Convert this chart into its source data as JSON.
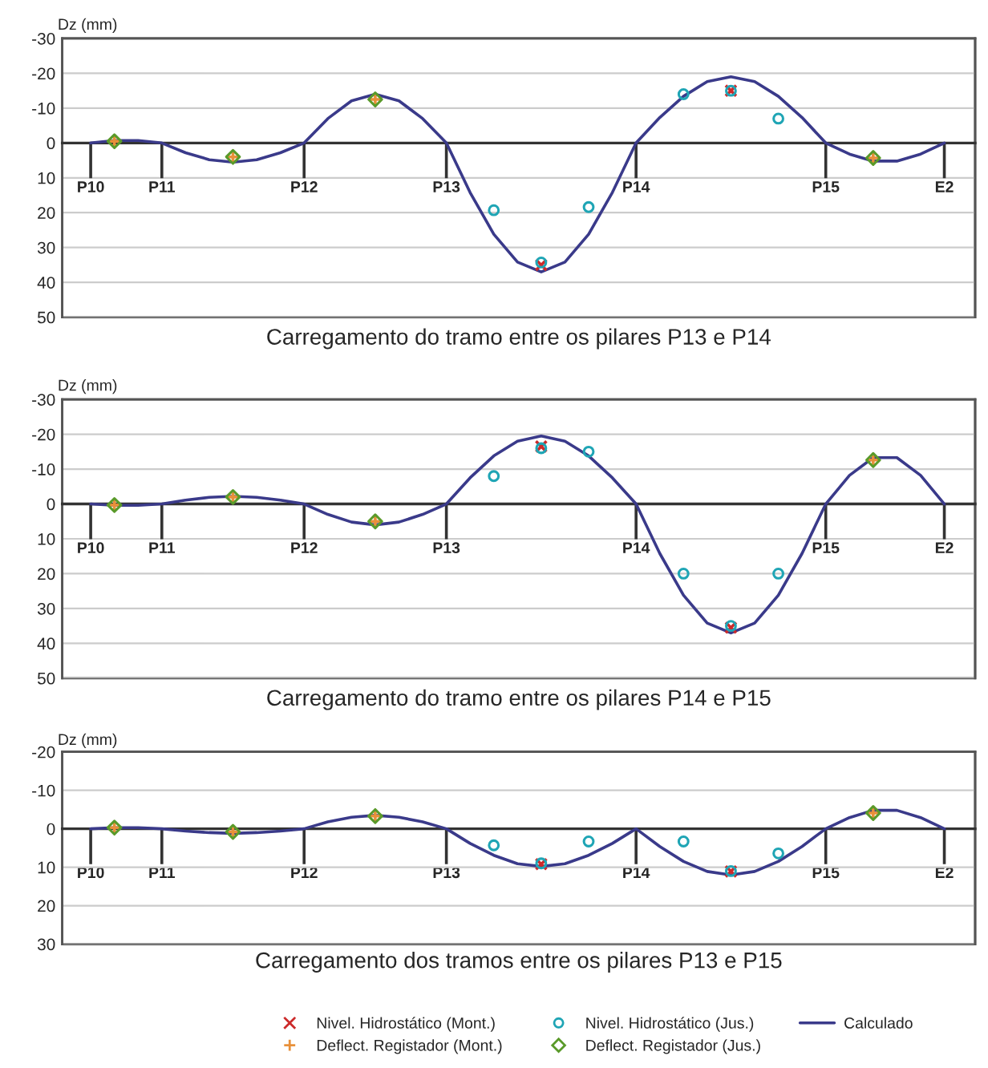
{
  "chart_data": [
    {
      "type": "line",
      "title": "Carregamento do tramo entre os pilares P13 e P14",
      "ylabel": "Dz (mm)",
      "categories": [
        "P10",
        null,
        null,
        "P11",
        null,
        null,
        null,
        null,
        null,
        "P12",
        null,
        null,
        null,
        null,
        null,
        "P13",
        null,
        null,
        null,
        null,
        null,
        null,
        null,
        "P14",
        null,
        null,
        null,
        null,
        null,
        null,
        null,
        "P15",
        null,
        null,
        null,
        null,
        "E2"
      ],
      "ylim": [
        50,
        -30
      ],
      "yticks": [
        -30,
        -20,
        -10,
        0,
        10,
        20,
        30,
        40,
        50
      ],
      "grid": "y",
      "series": [
        {
          "type": "scatter",
          "marker": "x",
          "color": "#cc2a2a",
          "values": [
            null,
            null,
            null,
            null,
            null,
            null,
            null,
            null,
            null,
            null,
            null,
            null,
            null,
            null,
            null,
            null,
            null,
            null,
            null,
            35,
            null,
            null,
            null,
            null,
            null,
            null,
            null,
            -15,
            null,
            null,
            null,
            null,
            null,
            null,
            null,
            null,
            null
          ]
        },
        {
          "type": "scatter",
          "marker": "cross",
          "color": "#e8903a",
          "values": [
            null,
            -0.5,
            null,
            null,
            null,
            null,
            4,
            null,
            null,
            null,
            null,
            null,
            -12.5,
            null,
            null,
            null,
            null,
            null,
            null,
            null,
            null,
            null,
            null,
            null,
            null,
            null,
            null,
            null,
            null,
            null,
            null,
            null,
            null,
            4.3,
            null,
            null,
            null
          ]
        },
        {
          "type": "scatter",
          "marker": "circle",
          "color": "#1fa5b5",
          "values": [
            null,
            null,
            null,
            null,
            null,
            null,
            null,
            null,
            null,
            null,
            null,
            null,
            null,
            null,
            null,
            null,
            null,
            19.3,
            null,
            34.3,
            null,
            18.4,
            null,
            null,
            null,
            -14,
            null,
            -15,
            null,
            -7,
            null,
            null,
            null,
            null,
            null,
            null,
            null
          ]
        },
        {
          "type": "scatter",
          "marker": "diamond",
          "color": "#5a9a2a",
          "values": [
            null,
            -0.5,
            null,
            null,
            null,
            null,
            4,
            null,
            null,
            null,
            null,
            null,
            -12.5,
            null,
            null,
            null,
            null,
            null,
            null,
            null,
            null,
            null,
            null,
            null,
            null,
            null,
            null,
            null,
            null,
            null,
            null,
            null,
            null,
            4.3,
            null,
            null,
            null
          ]
        },
        {
          "marker": "none",
          "line_style": "solid",
          "color": "#3a3a8a",
          "values": [
            0,
            -0.7,
            -0.7,
            0,
            2.8,
            4.8,
            5.5,
            4.8,
            2.8,
            0,
            -7,
            -12.1,
            -14,
            -12.1,
            -7,
            0,
            14.2,
            26.2,
            34.2,
            37,
            34.2,
            26.2,
            14.2,
            0,
            -7.3,
            -13.4,
            -17.6,
            -19,
            -17.6,
            -13.4,
            -7.3,
            0,
            3.2,
            5.2,
            5.2,
            3.2,
            0
          ]
        }
      ]
    },
    {
      "type": "line",
      "title": "Carregamento do tramo entre os pilares P14 e P15",
      "ylabel": "Dz (mm)",
      "categories": [
        "P10",
        null,
        null,
        "P11",
        null,
        null,
        null,
        null,
        null,
        "P12",
        null,
        null,
        null,
        null,
        null,
        "P13",
        null,
        null,
        null,
        null,
        null,
        null,
        null,
        "P14",
        null,
        null,
        null,
        null,
        null,
        null,
        null,
        "P15",
        null,
        null,
        null,
        null,
        "E2"
      ],
      "ylim": [
        50,
        -30
      ],
      "yticks": [
        -30,
        -20,
        -10,
        0,
        10,
        20,
        30,
        40,
        50
      ],
      "grid": "y",
      "series": [
        {
          "type": "scatter",
          "marker": "x",
          "color": "#cc2a2a",
          "values": [
            null,
            null,
            null,
            null,
            null,
            null,
            null,
            null,
            null,
            null,
            null,
            null,
            null,
            null,
            null,
            null,
            null,
            null,
            null,
            -16.5,
            null,
            null,
            null,
            null,
            null,
            null,
            null,
            35.5,
            null,
            null,
            null,
            null,
            null,
            null,
            null,
            null,
            null
          ]
        },
        {
          "type": "scatter",
          "marker": "cross",
          "color": "#e8903a",
          "values": [
            null,
            0.3,
            null,
            null,
            null,
            null,
            -2,
            null,
            null,
            null,
            null,
            null,
            5,
            null,
            null,
            null,
            null,
            null,
            null,
            null,
            null,
            null,
            null,
            null,
            null,
            null,
            null,
            null,
            null,
            null,
            null,
            null,
            null,
            -12.6,
            null,
            null,
            null
          ]
        },
        {
          "type": "scatter",
          "marker": "circle",
          "color": "#1fa5b5",
          "values": [
            null,
            null,
            null,
            null,
            null,
            null,
            null,
            null,
            null,
            null,
            null,
            null,
            null,
            null,
            null,
            null,
            null,
            -8,
            null,
            -16,
            null,
            -15,
            null,
            null,
            null,
            20,
            null,
            35,
            null,
            20,
            null,
            null,
            null,
            null,
            null,
            null,
            null
          ]
        },
        {
          "type": "scatter",
          "marker": "diamond",
          "color": "#5a9a2a",
          "values": [
            null,
            0.3,
            null,
            null,
            null,
            null,
            -2,
            null,
            null,
            null,
            null,
            null,
            5,
            null,
            null,
            null,
            null,
            null,
            null,
            null,
            null,
            null,
            null,
            null,
            null,
            null,
            null,
            null,
            null,
            null,
            null,
            null,
            null,
            -12.6,
            null,
            null,
            null
          ]
        },
        {
          "marker": "none",
          "line_style": "solid",
          "color": "#3a3a8a",
          "values": [
            0,
            0.4,
            0.4,
            0,
            -1.1,
            -1.9,
            -2.2,
            -1.9,
            -1.1,
            0,
            3,
            5.2,
            6,
            5.2,
            3,
            0,
            -7.5,
            -13.8,
            -18,
            -19.5,
            -18,
            -13.8,
            -7.5,
            0,
            14.2,
            26.2,
            34.2,
            37,
            34.2,
            26.2,
            14.2,
            0,
            -8.2,
            -13.3,
            -13.3,
            -8.2,
            0
          ]
        }
      ]
    },
    {
      "type": "line",
      "title": "Carregamento dos tramos entre os pilares P13 e P15",
      "ylabel": "Dz (mm)",
      "categories": [
        "P10",
        null,
        null,
        "P11",
        null,
        null,
        null,
        null,
        null,
        "P12",
        null,
        null,
        null,
        null,
        null,
        "P13",
        null,
        null,
        null,
        null,
        null,
        null,
        null,
        "P14",
        null,
        null,
        null,
        null,
        null,
        null,
        null,
        "P15",
        null,
        null,
        null,
        null,
        "E2"
      ],
      "ylim": [
        30,
        -20
      ],
      "yticks": [
        -20,
        -10,
        0,
        10,
        20,
        30
      ],
      "grid": "y",
      "legend": "bottom",
      "series": [
        {
          "name": "Nivel. Hidrostático (Mont.)",
          "type": "scatter",
          "marker": "x",
          "color": "#cc2a2a",
          "values": [
            null,
            null,
            null,
            null,
            null,
            null,
            null,
            null,
            null,
            null,
            null,
            null,
            null,
            null,
            null,
            null,
            null,
            null,
            null,
            9.2,
            null,
            null,
            null,
            null,
            null,
            null,
            null,
            11.1,
            null,
            null,
            null,
            null,
            null,
            null,
            null,
            null,
            null
          ]
        },
        {
          "name": "Deflect. Registador (Mont.)",
          "type": "scatter",
          "marker": "cross",
          "color": "#e8903a",
          "values": [
            null,
            -0.3,
            null,
            null,
            null,
            null,
            0.8,
            null,
            null,
            null,
            null,
            null,
            -3.3,
            null,
            null,
            null,
            null,
            null,
            null,
            null,
            null,
            null,
            null,
            null,
            null,
            null,
            null,
            null,
            null,
            null,
            null,
            null,
            null,
            -4.1,
            null,
            null,
            null
          ]
        },
        {
          "name": "Nivel. Hidrostático (Jus.)",
          "type": "scatter",
          "marker": "circle",
          "color": "#1fa5b5",
          "values": [
            null,
            null,
            null,
            null,
            null,
            null,
            null,
            null,
            null,
            null,
            null,
            null,
            null,
            null,
            null,
            null,
            null,
            4.3,
            null,
            9,
            null,
            3.3,
            null,
            null,
            null,
            3.3,
            null,
            11,
            null,
            6.4,
            null,
            null,
            null,
            null,
            null,
            null,
            null
          ]
        },
        {
          "name": "Deflect. Registador (Jus.)",
          "type": "scatter",
          "marker": "diamond",
          "color": "#5a9a2a",
          "values": [
            null,
            -0.3,
            null,
            null,
            null,
            null,
            0.8,
            null,
            null,
            null,
            null,
            null,
            -3.3,
            null,
            null,
            null,
            null,
            null,
            null,
            null,
            null,
            null,
            null,
            null,
            null,
            null,
            null,
            null,
            null,
            null,
            null,
            null,
            null,
            -4.1,
            null,
            null,
            null
          ]
        },
        {
          "name": "Calculado",
          "marker": "none",
          "line_style": "solid",
          "color": "#3a3a8a",
          "values": [
            0,
            -0.3,
            -0.3,
            0,
            0.6,
            1,
            1.2,
            1,
            0.6,
            0,
            -1.8,
            -3,
            -3.5,
            -3,
            -1.8,
            0,
            3.8,
            6.9,
            9.1,
            9.8,
            9.1,
            6.9,
            3.8,
            0,
            4.6,
            8.5,
            11.1,
            12,
            11.1,
            8.5,
            4.6,
            0,
            -2.9,
            -4.8,
            -4.8,
            -2.9,
            0
          ]
        }
      ]
    }
  ]
}
